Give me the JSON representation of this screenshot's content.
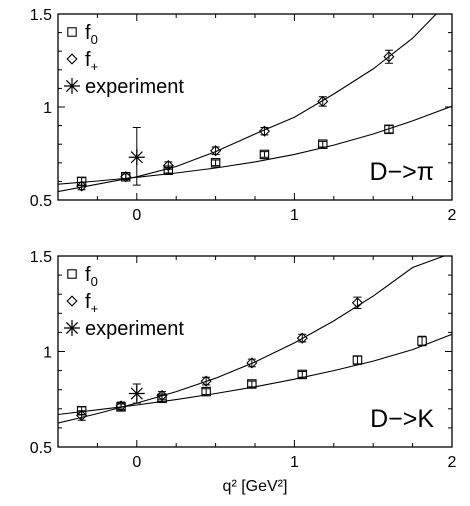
{
  "chart_data": [
    {
      "type": "scatter",
      "panel_label": "D−>π",
      "xlim": [
        -0.5,
        2.0
      ],
      "ylim": [
        0.5,
        1.5
      ],
      "x_ticks": [
        {
          "v": 0,
          "label": "0"
        },
        {
          "v": 1,
          "label": "1"
        },
        {
          "v": 2,
          "label": "2"
        }
      ],
      "y_ticks": [
        {
          "v": 0.5,
          "label": "0.5"
        },
        {
          "v": 1.0,
          "label": "1"
        },
        {
          "v": 1.5,
          "label": "1.5"
        }
      ],
      "xlabel": "",
      "legend": {
        "position": "top-left",
        "entries": [
          {
            "key": "f0",
            "marker": "square",
            "base": "f",
            "sub": "0"
          },
          {
            "key": "fplus",
            "marker": "diamond",
            "base": "f",
            "sub": "+"
          },
          {
            "key": "experiment",
            "marker": "asterisk",
            "base": "experiment",
            "sub": ""
          }
        ]
      },
      "series": [
        {
          "key": "f0",
          "marker": "square",
          "points": [
            {
              "x": -0.35,
              "y": 0.6,
              "err": 0.02
            },
            {
              "x": -0.07,
              "y": 0.625,
              "err": 0.015
            },
            {
              "x": 0.2,
              "y": 0.66,
              "err": 0.015
            },
            {
              "x": 0.5,
              "y": 0.7,
              "err": 0.015
            },
            {
              "x": 0.81,
              "y": 0.745,
              "err": 0.015
            },
            {
              "x": 1.18,
              "y": 0.8,
              "err": 0.015
            },
            {
              "x": 1.6,
              "y": 0.88,
              "err": 0.02
            }
          ]
        },
        {
          "key": "fplus",
          "marker": "diamond",
          "points": [
            {
              "x": -0.35,
              "y": 0.575,
              "err": 0.02
            },
            {
              "x": -0.07,
              "y": 0.625,
              "err": 0.015
            },
            {
              "x": 0.2,
              "y": 0.685,
              "err": 0.02
            },
            {
              "x": 0.5,
              "y": 0.765,
              "err": 0.02
            },
            {
              "x": 0.81,
              "y": 0.87,
              "err": 0.02
            },
            {
              "x": 1.18,
              "y": 1.03,
              "err": 0.025
            },
            {
              "x": 1.6,
              "y": 1.27,
              "err": 0.035
            }
          ]
        },
        {
          "key": "experiment",
          "marker": "asterisk",
          "points": [
            {
              "x": 0.0,
              "y": 0.73,
              "err_low": 0.15,
              "err_high": 0.16
            }
          ]
        }
      ],
      "fits": [
        {
          "key": "f0_fit",
          "x": [
            -0.5,
            -0.25,
            0.0,
            0.25,
            0.5,
            0.75,
            1.0,
            1.25,
            1.5,
            1.75,
            2.0
          ],
          "y": [
            0.585,
            0.602,
            0.622,
            0.645,
            0.672,
            0.705,
            0.745,
            0.795,
            0.855,
            0.925,
            1.005
          ]
        },
        {
          "key": "fplus_fit",
          "x": [
            -0.5,
            -0.25,
            0.0,
            0.25,
            0.5,
            0.75,
            1.0,
            1.25,
            1.5,
            1.75,
            1.9
          ],
          "y": [
            0.545,
            0.585,
            0.625,
            0.68,
            0.76,
            0.855,
            0.945,
            1.07,
            1.205,
            1.37,
            1.5
          ]
        }
      ]
    },
    {
      "type": "scatter",
      "panel_label": "D−>K",
      "xlim": [
        -0.5,
        2.0
      ],
      "ylim": [
        0.5,
        1.5
      ],
      "x_ticks": [
        {
          "v": 0,
          "label": "0"
        },
        {
          "v": 1,
          "label": "1"
        },
        {
          "v": 2,
          "label": "2"
        }
      ],
      "y_ticks": [
        {
          "v": 0.5,
          "label": "0.5"
        },
        {
          "v": 1.0,
          "label": "1"
        },
        {
          "v": 1.5,
          "label": "1.5"
        }
      ],
      "xlabel": "q² [GeV²]",
      "legend": {
        "position": "top-left",
        "entries": [
          {
            "key": "f0",
            "marker": "square",
            "base": "f",
            "sub": "0"
          },
          {
            "key": "fplus",
            "marker": "diamond",
            "base": "f",
            "sub": "+"
          },
          {
            "key": "experiment",
            "marker": "asterisk",
            "base": "experiment",
            "sub": ""
          }
        ]
      },
      "series": [
        {
          "key": "f0",
          "marker": "square",
          "points": [
            {
              "x": -0.35,
              "y": 0.69,
              "err": 0.02
            },
            {
              "x": -0.1,
              "y": 0.71,
              "err": 0.015
            },
            {
              "x": 0.16,
              "y": 0.755,
              "err": 0.015
            },
            {
              "x": 0.44,
              "y": 0.79,
              "err": 0.015
            },
            {
              "x": 0.73,
              "y": 0.83,
              "err": 0.015
            },
            {
              "x": 1.05,
              "y": 0.88,
              "err": 0.015
            },
            {
              "x": 1.4,
              "y": 0.955,
              "err": 0.02
            },
            {
              "x": 1.81,
              "y": 1.055,
              "err": 0.025
            }
          ]
        },
        {
          "key": "fplus",
          "marker": "diamond",
          "points": [
            {
              "x": -0.35,
              "y": 0.665,
              "err": 0.025
            },
            {
              "x": -0.1,
              "y": 0.715,
              "err": 0.02
            },
            {
              "x": 0.16,
              "y": 0.77,
              "err": 0.02
            },
            {
              "x": 0.44,
              "y": 0.845,
              "err": 0.02
            },
            {
              "x": 0.73,
              "y": 0.94,
              "err": 0.02
            },
            {
              "x": 1.05,
              "y": 1.07,
              "err": 0.02
            },
            {
              "x": 1.4,
              "y": 1.255,
              "err": 0.03
            }
          ]
        },
        {
          "key": "experiment",
          "marker": "asterisk",
          "points": [
            {
              "x": 0.0,
              "y": 0.78,
              "err_low": 0.05,
              "err_high": 0.05
            }
          ]
        }
      ],
      "fits": [
        {
          "key": "f0_fit",
          "x": [
            -0.5,
            -0.25,
            0.0,
            0.25,
            0.5,
            0.75,
            1.0,
            1.25,
            1.5,
            1.75,
            2.0
          ],
          "y": [
            0.67,
            0.695,
            0.72,
            0.748,
            0.78,
            0.815,
            0.855,
            0.9,
            0.95,
            1.01,
            1.09
          ]
        },
        {
          "key": "fplus_fit",
          "x": [
            -0.5,
            -0.25,
            0.0,
            0.25,
            0.5,
            0.75,
            1.0,
            1.25,
            1.5,
            1.75,
            1.95
          ],
          "y": [
            0.625,
            0.675,
            0.73,
            0.79,
            0.86,
            0.945,
            1.045,
            1.16,
            1.29,
            1.44,
            1.5
          ]
        }
      ]
    }
  ]
}
